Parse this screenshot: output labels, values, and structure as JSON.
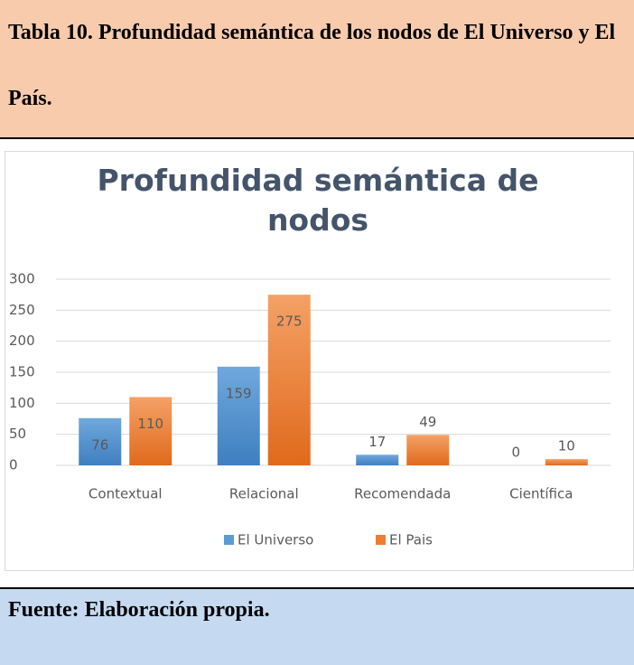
{
  "header": {
    "title": "Tabla 10. Profundidad semántica de los nodos de El Universo y El País."
  },
  "chart_data": {
    "type": "bar",
    "title": "Profundidad semántica de nodos",
    "categories": [
      "Contextual",
      "Relacional",
      "Recomendada",
      "Científica"
    ],
    "series": [
      {
        "name": "El Universo",
        "color": "#5b9bd5",
        "values": [
          76,
          159,
          17,
          0
        ]
      },
      {
        "name": "El Pais",
        "color": "#ed7d31",
        "values": [
          110,
          275,
          49,
          10
        ]
      }
    ],
    "ylim": [
      0,
      300
    ],
    "yticks": [
      0,
      50,
      100,
      150,
      200,
      250,
      300
    ],
    "grid": true,
    "legend": "bottom"
  },
  "footer": {
    "source": "Fuente: Elaboración propia."
  }
}
